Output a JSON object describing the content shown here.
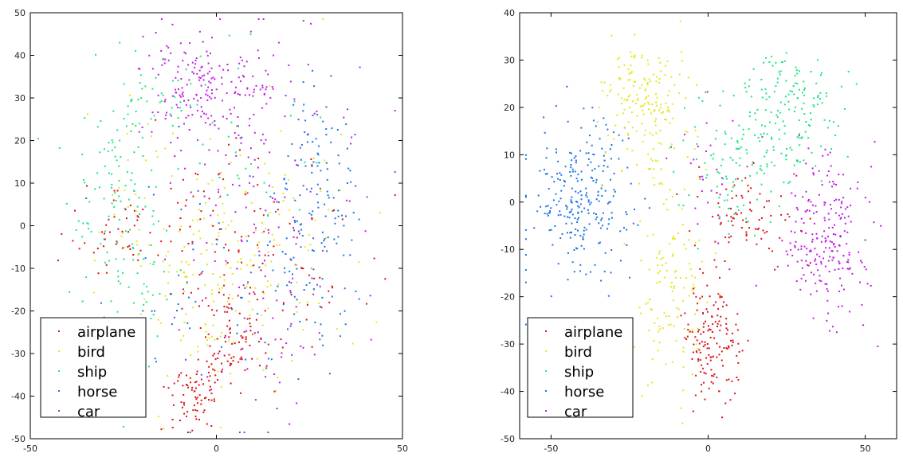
{
  "chart_data": [
    {
      "type": "scatter",
      "title": "",
      "xlabel": "",
      "ylabel": "",
      "xlim": [
        -50,
        50
      ],
      "ylim": [
        -50,
        50
      ],
      "xticks": [
        -50,
        0,
        50
      ],
      "yticks": [
        50,
        40,
        30,
        20,
        10,
        0,
        -10,
        -20,
        -30,
        -40,
        -50
      ],
      "grid": false,
      "legend_position": "bottom-left",
      "series": [
        {
          "name": "airplane",
          "color": "#e01010",
          "clusters": [
            {
              "cx": -6,
              "cy": -41,
              "sx": 4,
              "sy": 4,
              "n": 70
            },
            {
              "cx": 4,
              "cy": -28,
              "sx": 5,
              "sy": 8,
              "n": 90
            },
            {
              "cx": 2,
              "cy": 0,
              "sx": 14,
              "sy": 12,
              "n": 80
            },
            {
              "cx": -28,
              "cy": -2,
              "sx": 6,
              "sy": 5,
              "n": 40
            },
            {
              "cx": 20,
              "cy": -12,
              "sx": 10,
              "sy": 12,
              "n": 35
            }
          ]
        },
        {
          "name": "bird",
          "color": "#e6e619",
          "clusters": [
            {
              "cx": -5,
              "cy": -18,
              "sx": 10,
              "sy": 14,
              "n": 110
            },
            {
              "cx": 12,
              "cy": 0,
              "sx": 14,
              "sy": 14,
              "n": 90
            },
            {
              "cx": -20,
              "cy": 10,
              "sx": 8,
              "sy": 10,
              "n": 30
            }
          ]
        },
        {
          "name": "ship",
          "color": "#19e680",
          "clusters": [
            {
              "cx": -28,
              "cy": 10,
              "sx": 7,
              "sy": 10,
              "n": 90
            },
            {
              "cx": -22,
              "cy": -18,
              "sx": 6,
              "sy": 10,
              "n": 55
            },
            {
              "cx": -15,
              "cy": 30,
              "sx": 6,
              "sy": 6,
              "n": 40
            },
            {
              "cx": 5,
              "cy": 18,
              "sx": 14,
              "sy": 10,
              "n": 30
            }
          ]
        },
        {
          "name": "horse",
          "color": "#1a73e6",
          "clusters": [
            {
              "cx": 28,
              "cy": 10,
              "sx": 6,
              "sy": 12,
              "n": 110
            },
            {
              "cx": 25,
              "cy": -15,
              "sx": 7,
              "sy": 10,
              "n": 60
            },
            {
              "cx": 0,
              "cy": -10,
              "sx": 15,
              "sy": 16,
              "n": 60
            }
          ]
        },
        {
          "name": "car",
          "color": "#c21ae6",
          "clusters": [
            {
              "cx": -8,
              "cy": 33,
              "sx": 6,
              "sy": 6,
              "n": 120
            },
            {
              "cx": 8,
              "cy": 33,
              "sx": 7,
              "sy": 6,
              "n": 80
            },
            {
              "cx": 10,
              "cy": 10,
              "sx": 14,
              "sy": 12,
              "n": 80
            },
            {
              "cx": 10,
              "cy": -25,
              "sx": 12,
              "sy": 12,
              "n": 50
            }
          ]
        }
      ]
    },
    {
      "type": "scatter",
      "title": "",
      "xlabel": "",
      "ylabel": "",
      "xlim": [
        -60,
        60
      ],
      "ylim": [
        -50,
        40
      ],
      "xticks": [
        -50,
        0,
        50
      ],
      "yticks": [
        40,
        30,
        20,
        10,
        0,
        -10,
        -20,
        -30,
        -40,
        -50
      ],
      "grid": false,
      "legend_position": "bottom-left",
      "series": [
        {
          "name": "airplane",
          "color": "#e01010",
          "clusters": [
            {
              "cx": 1,
              "cy": -30,
              "sx": 5,
              "sy": 6,
              "n": 150
            },
            {
              "cx": 12,
              "cy": -3,
              "sx": 8,
              "sy": 5,
              "n": 80
            }
          ]
        },
        {
          "name": "bird",
          "color": "#e6e619",
          "clusters": [
            {
              "cx": -20,
              "cy": 22,
              "sx": 7,
              "sy": 6,
              "n": 160
            },
            {
              "cx": -12,
              "cy": -20,
              "sx": 6,
              "sy": 10,
              "n": 110
            },
            {
              "cx": -15,
              "cy": 2,
              "sx": 6,
              "sy": 6,
              "n": 30
            }
          ]
        },
        {
          "name": "ship",
          "color": "#19e680",
          "clusters": [
            {
              "cx": 25,
              "cy": 18,
              "sx": 9,
              "sy": 7,
              "n": 170
            },
            {
              "cx": 8,
              "cy": 6,
              "sx": 8,
              "sy": 7,
              "n": 80
            }
          ]
        },
        {
          "name": "horse",
          "color": "#1a73e6",
          "clusters": [
            {
              "cx": -40,
              "cy": 1,
              "sx": 8,
              "sy": 8,
              "n": 260
            }
          ]
        },
        {
          "name": "car",
          "color": "#c21ae6",
          "clusters": [
            {
              "cx": 38,
              "cy": -7,
              "sx": 7,
              "sy": 8,
              "n": 230
            },
            {
              "cx": 0,
              "cy": 5,
              "sx": 6,
              "sy": 8,
              "n": 25
            }
          ]
        }
      ]
    }
  ],
  "left_legend": [
    "airplane",
    "bird",
    "ship",
    "horse",
    "car"
  ],
  "right_legend": [
    "airplane",
    "bird",
    "ship",
    "horse",
    "car"
  ]
}
